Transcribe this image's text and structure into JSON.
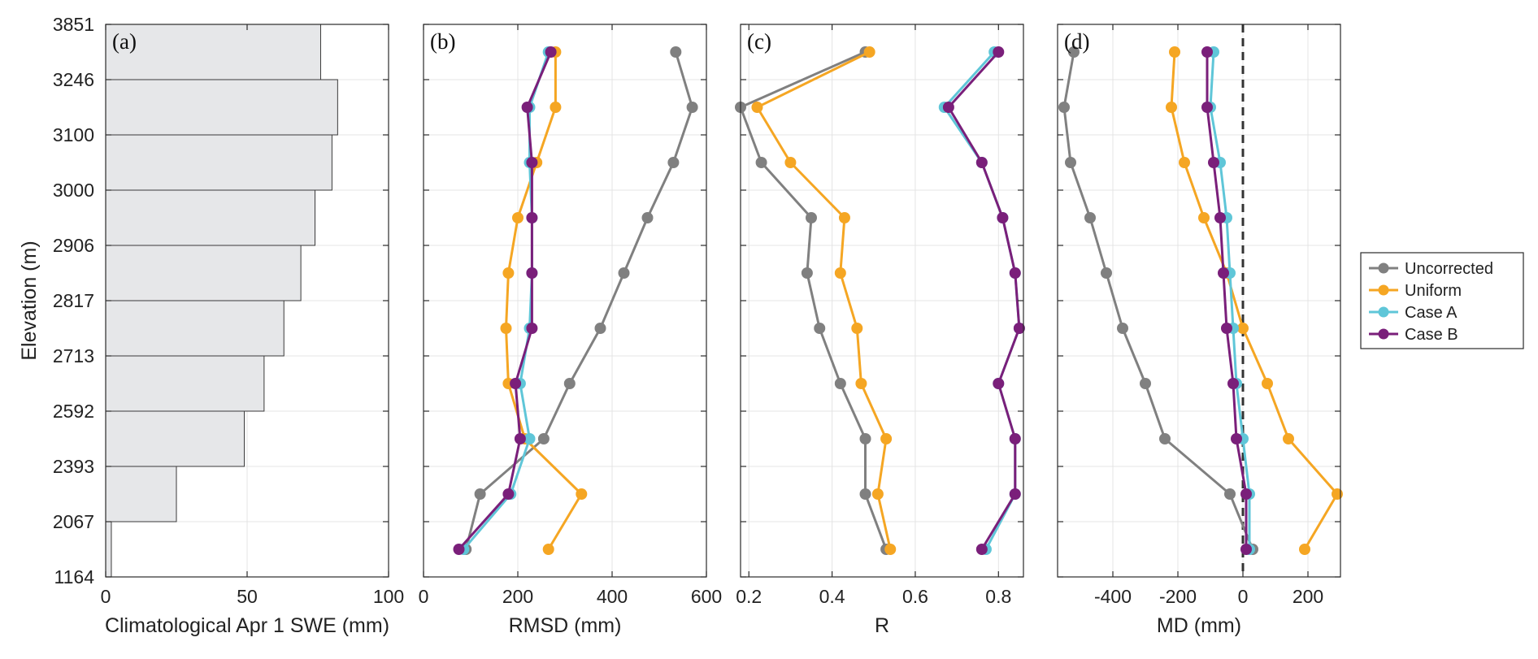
{
  "chart_data": [
    {
      "type": "bar",
      "orientation": "horizontal",
      "panel_label": "(a)",
      "xlabel": "Climatological Apr 1 SWE (mm)",
      "ylabel": "Elevation (m)",
      "xlim": [
        0,
        100
      ],
      "xticks": [
        "0",
        "50",
        "100"
      ],
      "categories": [
        "1164-2067",
        "2067-2393",
        "2393-2592",
        "2592-2713",
        "2713-2817",
        "2817-2906",
        "2906-3000",
        "3000-3100",
        "3100-3246",
        "3246-3851"
      ],
      "values": [
        2,
        25,
        49,
        56,
        63,
        69,
        74,
        80,
        82,
        76
      ],
      "bar_color": "#e6e7e9"
    },
    {
      "type": "line",
      "panel_label": "(b)",
      "xlabel": "RMSD (mm)",
      "xlim": [
        0,
        600
      ],
      "xticks": [
        "0",
        "200",
        "400",
        "600"
      ],
      "series": [
        {
          "name": "Uncorrected",
          "color": "#808080",
          "values": [
            90,
            120,
            255,
            310,
            375,
            425,
            475,
            530,
            570,
            535
          ]
        },
        {
          "name": "Uniform",
          "color": "#f5a623",
          "values": [
            265,
            335,
            215,
            180,
            175,
            180,
            200,
            240,
            280,
            280
          ]
        },
        {
          "name": "Case A",
          "color": "#5fc6d8",
          "values": [
            85,
            185,
            225,
            205,
            225,
            230,
            230,
            225,
            225,
            265
          ]
        },
        {
          "name": "Case B",
          "color": "#7a1f7a",
          "values": [
            75,
            180,
            205,
            195,
            230,
            230,
            230,
            230,
            220,
            270
          ]
        }
      ]
    },
    {
      "type": "line",
      "panel_label": "(c)",
      "xlabel": "R",
      "xlim": [
        0.18,
        0.86
      ],
      "xticks": [
        "0.2",
        "0.4",
        "0.6",
        "0.8"
      ],
      "series": [
        {
          "name": "Uncorrected",
          "color": "#808080",
          "values": [
            0.53,
            0.48,
            0.48,
            0.42,
            0.37,
            0.34,
            0.35,
            0.23,
            0.18,
            0.48
          ]
        },
        {
          "name": "Uniform",
          "color": "#f5a623",
          "values": [
            0.54,
            0.51,
            0.53,
            0.47,
            0.46,
            0.42,
            0.43,
            0.3,
            0.22,
            0.49
          ]
        },
        {
          "name": "Case A",
          "color": "#5fc6d8",
          "values": [
            0.77,
            0.84,
            0.84,
            0.8,
            0.85,
            0.84,
            0.81,
            0.76,
            0.67,
            0.79
          ]
        },
        {
          "name": "Case B",
          "color": "#7a1f7a",
          "values": [
            0.76,
            0.84,
            0.84,
            0.8,
            0.85,
            0.84,
            0.81,
            0.76,
            0.68,
            0.8
          ]
        }
      ]
    },
    {
      "type": "line",
      "panel_label": "(d)",
      "xlabel": "MD (mm)",
      "xlim": [
        -570,
        300
      ],
      "xticks": [
        "-400",
        "-200",
        "0",
        "200"
      ],
      "reference_line": {
        "x": 0,
        "style": "dashed"
      },
      "series": [
        {
          "name": "Uncorrected",
          "color": "#808080",
          "values": [
            30,
            -40,
            -240,
            -300,
            -370,
            -420,
            -470,
            -530,
            -550,
            -520
          ]
        },
        {
          "name": "Uniform",
          "color": "#f5a623",
          "values": [
            190,
            290,
            140,
            75,
            0,
            -50,
            -120,
            -180,
            -220,
            -210
          ]
        },
        {
          "name": "Case A",
          "color": "#5fc6d8",
          "values": [
            20,
            20,
            0,
            -20,
            -30,
            -40,
            -50,
            -70,
            -100,
            -90
          ]
        },
        {
          "name": "Case B",
          "color": "#7a1f7a",
          "values": [
            10,
            10,
            -20,
            -30,
            -50,
            -60,
            -70,
            -90,
            -110,
            -110
          ]
        }
      ]
    }
  ],
  "y_axis": {
    "label": "Elevation (m)",
    "tick_labels": [
      "1164",
      "2067",
      "2393",
      "2592",
      "2713",
      "2817",
      "2906",
      "3000",
      "3100",
      "3246",
      "3851"
    ]
  },
  "legend": {
    "placement": "right",
    "entries": [
      {
        "name": "Uncorrected",
        "color": "#808080"
      },
      {
        "name": "Uniform",
        "color": "#f5a623"
      },
      {
        "name": "Case A",
        "color": "#5fc6d8"
      },
      {
        "name": "Case B",
        "color": "#7a1f7a"
      }
    ]
  }
}
